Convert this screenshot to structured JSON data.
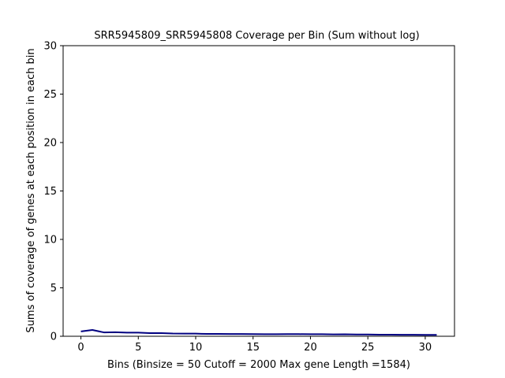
{
  "chart_data": {
    "type": "line",
    "title": "SRR5945809_SRR5945808 Coverage per Bin (Sum without log)",
    "xlabel": "Bins  (Binsize = 50 Cutoff = 2000 Max gene Length =1584)",
    "ylabel": "Sums of coverage of genes at each position in each bin",
    "xlim": [
      -1.55,
      32.55
    ],
    "ylim": [
      0,
      30
    ],
    "xticks": [
      0,
      5,
      10,
      15,
      20,
      25,
      30
    ],
    "yticks": [
      0,
      5,
      10,
      15,
      20,
      25,
      30
    ],
    "grid": false,
    "series": [
      {
        "color": "#000080",
        "x": [
          0,
          1,
          2,
          3,
          4,
          5,
          6,
          7,
          8,
          9,
          10,
          11,
          12,
          13,
          14,
          15,
          16,
          17,
          18,
          19,
          20,
          21,
          22,
          23,
          24,
          25,
          26,
          27,
          28,
          29,
          30,
          31
        ],
        "y": [
          0.5,
          0.65,
          0.4,
          0.42,
          0.38,
          0.38,
          0.33,
          0.32,
          0.28,
          0.27,
          0.27,
          0.24,
          0.24,
          0.23,
          0.23,
          0.22,
          0.21,
          0.21,
          0.22,
          0.22,
          0.21,
          0.21,
          0.19,
          0.2,
          0.18,
          0.18,
          0.16,
          0.16,
          0.15,
          0.15,
          0.14,
          0.14
        ]
      }
    ]
  }
}
